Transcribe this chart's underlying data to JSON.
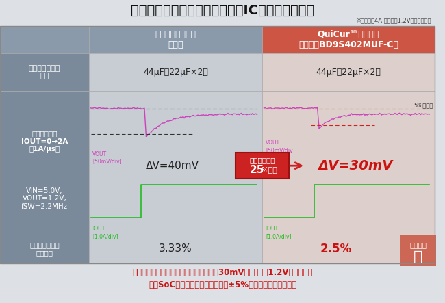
{
  "title": "車載セカンダリ電源用途、電源ICの応答性能比較",
  "subtitle": "※出力電流4A,出力電圧1.2V対応品で評価",
  "bg_color": "#dde0e5",
  "header_left_bg": "#8a9aaa",
  "header_right_bg": "#cc5544",
  "row_label_bg": "#7a8a9a",
  "header_left_text": "業界トップクラス\n一般品",
  "header_right_text": "QuiCur™技術搭載\n新製品「BD9S402MUF-C」",
  "row1_label": "出力コンデンサ\n容量",
  "row1_col1": "44μF（22μF×2）",
  "row1_col2": "44μF（22μF×2）",
  "row2_label_top": "負荷応答波形\nIOUT=0→2A\n（1A/μs）",
  "row2_label_bot": "VIN=5.0V,\nVOUT=1.2V,\nfSW=2.2MHz",
  "row3_label": "出力電圧からの\n変動比率",
  "row3_col1": "3.33%",
  "row3_col2": "2.5%",
  "delta_v_left": "ΔV=40mV",
  "delta_v_right": "ΔV=30mV",
  "reduction_line1": "出力電圧変動",
  "reduction_line2": "25",
  "reduction_line2b": "%低減",
  "design_line1": "設計余裕",
  "design_line2": "大",
  "vout_label": "VOUT\n[50mV/div]",
  "iout_label": "IOUT\n[1.0A/div]",
  "five_pct_label": "5%ライン",
  "footer_line1": "新製品は、業界トップクラスの安定動作30mV（出力電圧1.2V時）を達成",
  "footer_line2": "先進SoC向けの低電圧出力時でも±5%の要求精度に対応可能",
  "vout_color": "#cc44bb",
  "iout_color": "#22bb22",
  "dash_black": "#333333",
  "dash_red": "#cc2222",
  "arrow_color": "#cc2222",
  "reduction_box_bg": "#cc2222",
  "design_box_bg": "#cc6655",
  "footer_color": "#cc1111",
  "delta_v_left_color": "#222222",
  "delta_v_right_color": "#cc1111",
  "waveform_bg1": "#c8cdd4",
  "waveform_bg2": "#ddd0cc",
  "row1_bg1": "#c8cdd4",
  "row1_bg2": "#ddd0cc",
  "row3_bg1": "#c8cdd4",
  "row3_bg2": "#ddd0cc"
}
